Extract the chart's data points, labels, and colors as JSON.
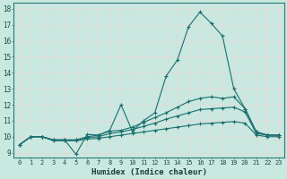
{
  "title": "",
  "xlabel": "Humidex (Indice chaleur)",
  "ylabel": "",
  "bg_color": "#c8e8e0",
  "grid_color": "#dff0f0",
  "line_color": "#1a6e6e",
  "xlim": [
    -0.5,
    23.5
  ],
  "ylim": [
    8.7,
    18.4
  ],
  "xticks": [
    0,
    1,
    2,
    3,
    4,
    5,
    6,
    7,
    8,
    9,
    10,
    11,
    12,
    13,
    14,
    15,
    16,
    17,
    18,
    19,
    20,
    21,
    22,
    23
  ],
  "yticks": [
    9,
    10,
    11,
    12,
    13,
    14,
    15,
    16,
    17,
    18
  ],
  "lines": [
    {
      "x": [
        0,
        1,
        2,
        3,
        4,
        5,
        6,
        7,
        8,
        9,
        10,
        11,
        12,
        13,
        14,
        15,
        16,
        17,
        18,
        19,
        20,
        21,
        22,
        23
      ],
      "y": [
        9.5,
        10.0,
        10.0,
        9.8,
        9.8,
        8.9,
        10.15,
        10.1,
        10.4,
        12.0,
        10.35,
        11.0,
        11.5,
        13.8,
        14.8,
        16.9,
        17.8,
        17.1,
        16.3,
        13.0,
        11.75,
        10.3,
        10.1,
        10.1
      ]
    },
    {
      "x": [
        0,
        1,
        2,
        3,
        4,
        5,
        6,
        7,
        8,
        9,
        10,
        11,
        12,
        13,
        14,
        15,
        16,
        17,
        18,
        19,
        20,
        21,
        22,
        23
      ],
      "y": [
        9.5,
        10.0,
        10.0,
        9.8,
        9.8,
        9.8,
        10.0,
        10.1,
        10.35,
        10.4,
        10.6,
        10.9,
        11.2,
        11.5,
        11.85,
        12.2,
        12.4,
        12.5,
        12.4,
        12.5,
        11.75,
        10.3,
        10.1,
        10.1
      ]
    },
    {
      "x": [
        0,
        1,
        2,
        3,
        4,
        5,
        6,
        7,
        8,
        9,
        10,
        11,
        12,
        13,
        14,
        15,
        16,
        17,
        18,
        19,
        20,
        21,
        22,
        23
      ],
      "y": [
        9.5,
        10.0,
        10.0,
        9.8,
        9.8,
        9.8,
        9.95,
        10.0,
        10.2,
        10.3,
        10.45,
        10.65,
        10.85,
        11.1,
        11.3,
        11.5,
        11.7,
        11.75,
        11.8,
        11.85,
        11.55,
        10.2,
        10.1,
        10.1
      ]
    },
    {
      "x": [
        0,
        1,
        2,
        3,
        4,
        5,
        6,
        7,
        8,
        9,
        10,
        11,
        12,
        13,
        14,
        15,
        16,
        17,
        18,
        19,
        20,
        21,
        22,
        23
      ],
      "y": [
        9.5,
        10.0,
        10.0,
        9.75,
        9.75,
        9.75,
        9.85,
        9.9,
        10.0,
        10.1,
        10.2,
        10.3,
        10.4,
        10.5,
        10.6,
        10.7,
        10.8,
        10.85,
        10.9,
        10.95,
        10.85,
        10.1,
        10.0,
        10.0
      ]
    }
  ]
}
